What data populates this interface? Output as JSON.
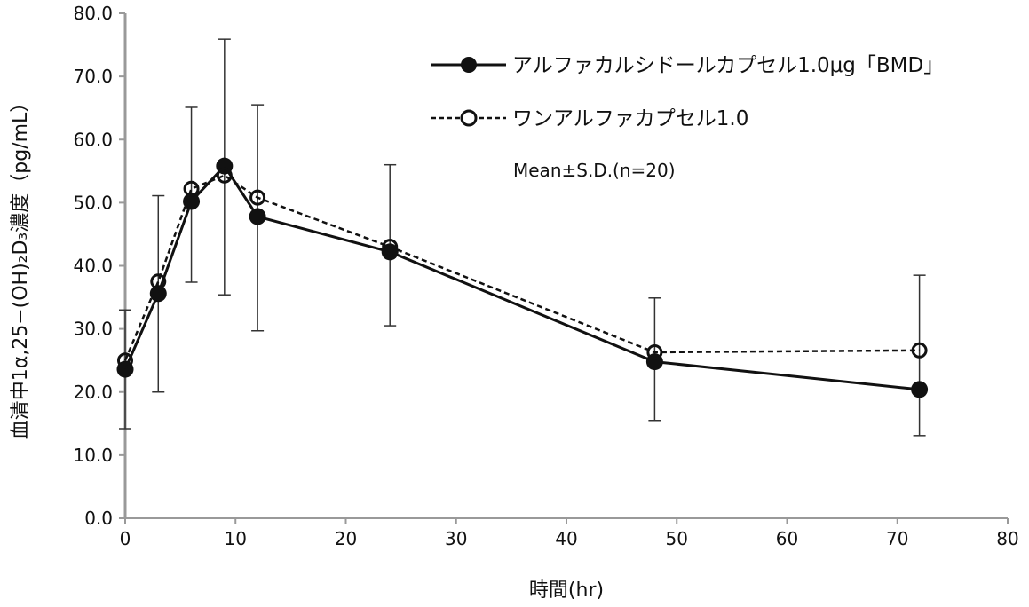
{
  "chart_data": {
    "type": "line",
    "title": "",
    "xlabel": "時間(hr)",
    "ylabel": "血清中1α,25−(OH)₂D₃濃度（pg/mL）",
    "xlim": [
      0,
      80
    ],
    "ylim": [
      0,
      80
    ],
    "xticks": [
      "0",
      "10",
      "20",
      "30",
      "40",
      "50",
      "60",
      "70",
      "80"
    ],
    "xtick_values": [
      0,
      10,
      20,
      30,
      40,
      50,
      60,
      70,
      80
    ],
    "yticks": [
      "0.0",
      "10.0",
      "20.0",
      "30.0",
      "40.0",
      "50.0",
      "60.0",
      "70.0",
      "80.0"
    ],
    "ytick_values": [
      0,
      10,
      20,
      30,
      40,
      50,
      60,
      70,
      80
    ],
    "grid": false,
    "legend_position": "top-right",
    "x": [
      0,
      3,
      6,
      9,
      12,
      24,
      48,
      72
    ],
    "series": [
      {
        "name": "アルファカルシドールカプセル1.0μg「BMD」",
        "style": "solid",
        "marker": "filled-circle",
        "values": [
          23.6,
          35.6,
          50.2,
          55.8,
          47.8,
          42.2,
          24.8,
          20.4
        ]
      },
      {
        "name": "ワンアルファカプセル1.0",
        "style": "dashed",
        "marker": "open-circle",
        "values": [
          25.0,
          37.5,
          52.2,
          54.3,
          50.8,
          43.0,
          26.3,
          26.6
        ]
      }
    ],
    "error_bars": {
      "upper": [
        33.0,
        51.1,
        65.1,
        75.9,
        65.5,
        56.0,
        34.9,
        38.5
      ],
      "lower": [
        14.2,
        20.0,
        37.4,
        35.4,
        29.7,
        30.5,
        15.5,
        13.1
      ]
    },
    "annotation": "Mean±S.D.(n=20)"
  }
}
